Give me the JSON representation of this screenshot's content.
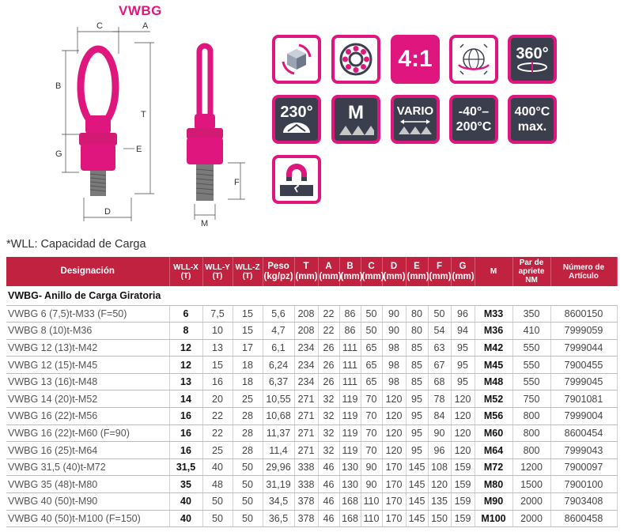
{
  "title": "VWBG",
  "drawing": {
    "dimension_labels": [
      "C",
      "A",
      "B",
      "T",
      "G",
      "E",
      "D",
      "M",
      "F"
    ]
  },
  "icons": [
    {
      "name": "rotation-cube-icon",
      "text": ""
    },
    {
      "name": "ball-bearing-icon",
      "text": ""
    },
    {
      "name": "safety-factor-icon",
      "text": "4:1"
    },
    {
      "name": "globe-rotation-icon",
      "text": ""
    },
    {
      "name": "swivel-360-icon",
      "text": "360°"
    },
    {
      "name": "pivot-230-icon",
      "text": "230°"
    },
    {
      "name": "metric-thread-icon",
      "text": "M"
    },
    {
      "name": "vario-thread-icon",
      "text": "VARIO"
    },
    {
      "name": "temperature-range-icon",
      "text": "-40°–",
      "text2": "200°C"
    },
    {
      "name": "max-temperature-icon",
      "text": "400°C",
      "text2": "max."
    },
    {
      "name": "magnet-icon",
      "text": ""
    }
  ],
  "colors": {
    "brand": "#e0167f",
    "table_header": "#c0223f",
    "icon_dark": "#3b3f4d"
  },
  "note": "*WLL: Capacidad de Carga",
  "table": {
    "headers": [
      {
        "l1": "Designación",
        "l2": ""
      },
      {
        "l1": "WLL-X",
        "l2": "(T)"
      },
      {
        "l1": "WLL-Y",
        "l2": "(T)"
      },
      {
        "l1": "WLL-Z",
        "l2": "(T)"
      },
      {
        "l1": "Peso",
        "l2": "(kg/pz)"
      },
      {
        "l1": "T",
        "l2": "(mm)"
      },
      {
        "l1": "A",
        "l2": "(mm)"
      },
      {
        "l1": "B",
        "l2": "(mm)"
      },
      {
        "l1": "C",
        "l2": "(mm)"
      },
      {
        "l1": "D",
        "l2": "(mm)"
      },
      {
        "l1": "E",
        "l2": "(mm)"
      },
      {
        "l1": "F",
        "l2": "(mm)"
      },
      {
        "l1": "G",
        "l2": "(mm)"
      },
      {
        "l1": "M",
        "l2": ""
      },
      {
        "l1": "Par de apriete",
        "l2": "NM"
      },
      {
        "l1": "Número de",
        "l2": "Artículo"
      }
    ],
    "group_title": "VWBG- Anillo de Carga Giratoria",
    "rows": [
      [
        "VWBG 6 (7,5)t-M33 (F=50)",
        "6",
        "7,5",
        "15",
        "5,6",
        "208",
        "22",
        "86",
        "50",
        "90",
        "80",
        "50",
        "96",
        "M33",
        "350",
        "8600150"
      ],
      [
        "VWBG 8 (10)t-M36",
        "8",
        "10",
        "15",
        "4,7",
        "208",
        "22",
        "86",
        "50",
        "90",
        "80",
        "54",
        "94",
        "M36",
        "410",
        "7999059"
      ],
      [
        "VWBG 12 (13)t-M42",
        "12",
        "13",
        "17",
        "6,1",
        "234",
        "26",
        "111",
        "65",
        "98",
        "85",
        "63",
        "95",
        "M42",
        "550",
        "7999044"
      ],
      [
        "VWBG 12 (15)t-M45",
        "12",
        "15",
        "18",
        "6,24",
        "234",
        "26",
        "111",
        "65",
        "98",
        "85",
        "67",
        "95",
        "M45",
        "550",
        "7900455"
      ],
      [
        "VWBG 13 (16)t-M48",
        "13",
        "16",
        "18",
        "6,37",
        "234",
        "26",
        "111",
        "65",
        "98",
        "85",
        "68",
        "95",
        "M48",
        "550",
        "7999045"
      ],
      [
        "VWBG 14 (20)t-M52",
        "14",
        "20",
        "25",
        "10,55",
        "271",
        "32",
        "119",
        "70",
        "120",
        "95",
        "78",
        "120",
        "M52",
        "750",
        "7901081"
      ],
      [
        "VWBG 16 (22)t-M56",
        "16",
        "22",
        "28",
        "10,68",
        "271",
        "32",
        "119",
        "70",
        "120",
        "95",
        "84",
        "120",
        "M56",
        "800",
        "7999004"
      ],
      [
        "VWBG 16 (22)t-M60 (F=90)",
        "16",
        "22",
        "28",
        "11,37",
        "271",
        "32",
        "119",
        "70",
        "120",
        "95",
        "90",
        "120",
        "M60",
        "800",
        "8600454"
      ],
      [
        "VWBG 16 (25)t-M64",
        "16",
        "25",
        "28",
        "11,4",
        "271",
        "32",
        "119",
        "70",
        "120",
        "95",
        "96",
        "120",
        "M64",
        "800",
        "7999043"
      ],
      [
        "VWBG 31,5 (40)t-M72",
        "31,5",
        "40",
        "50",
        "29,96",
        "338",
        "46",
        "130",
        "90",
        "170",
        "145",
        "108",
        "159",
        "M72",
        "1200",
        "7900097"
      ],
      [
        "VWBG 35 (48)t-M80",
        "35",
        "48",
        "50",
        "31,19",
        "338",
        "46",
        "130",
        "90",
        "170",
        "145",
        "120",
        "159",
        "M80",
        "1500",
        "7900100"
      ],
      [
        "VWBG 40 (50)t-M90",
        "40",
        "50",
        "50",
        "34,5",
        "378",
        "46",
        "168",
        "110",
        "170",
        "145",
        "135",
        "159",
        "M90",
        "2000",
        "7903408"
      ],
      [
        "VWBG 40 (50)t-M100 (F=150)",
        "40",
        "50",
        "50",
        "36,5",
        "378",
        "46",
        "168",
        "110",
        "170",
        "145",
        "150",
        "159",
        "M100",
        "2000",
        "8600458"
      ]
    ]
  }
}
